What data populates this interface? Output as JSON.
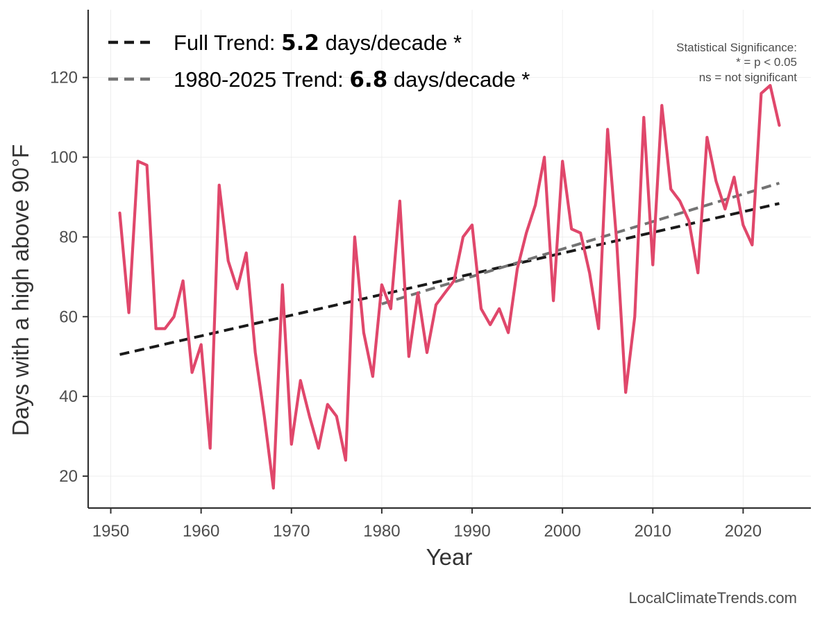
{
  "chart_data": {
    "type": "line",
    "title": "",
    "xlabel": "Year",
    "ylabel": "Days with a high above 90°F",
    "xlim": [
      1947.5,
      2027.5
    ],
    "ylim": [
      12,
      137
    ],
    "xticks": [
      1950,
      1960,
      1970,
      1980,
      1990,
      2000,
      2010,
      2020
    ],
    "yticks": [
      20,
      40,
      60,
      80,
      100,
      120
    ],
    "grid": true,
    "x": [
      1951,
      1952,
      1953,
      1954,
      1955,
      1956,
      1957,
      1958,
      1959,
      1960,
      1961,
      1962,
      1963,
      1964,
      1965,
      1966,
      1967,
      1968,
      1969,
      1970,
      1971,
      1972,
      1973,
      1974,
      1975,
      1976,
      1977,
      1978,
      1979,
      1980,
      1981,
      1982,
      1983,
      1984,
      1985,
      1986,
      1987,
      1988,
      1989,
      1990,
      1991,
      1992,
      1993,
      1994,
      1995,
      1996,
      1997,
      1998,
      1999,
      2000,
      2001,
      2002,
      2003,
      2004,
      2005,
      2006,
      2007,
      2008,
      2009,
      2010,
      2011,
      2012,
      2013,
      2014,
      2015,
      2016,
      2017,
      2018,
      2019,
      2020,
      2021,
      2022,
      2023,
      2024
    ],
    "series": [
      {
        "name": "Days with a high above 90°F",
        "color": "#e0476b",
        "values": [
          86,
          61,
          99,
          98,
          57,
          57,
          60,
          69,
          46,
          53,
          27,
          93,
          74,
          67,
          76,
          51,
          35,
          17,
          68,
          28,
          44,
          35,
          27,
          38,
          35,
          24,
          80,
          56,
          45,
          68,
          62,
          89,
          50,
          66,
          51,
          63,
          66,
          69,
          80,
          83,
          62,
          58,
          62,
          56,
          72,
          81,
          88,
          100,
          64,
          99,
          82,
          81,
          71,
          57,
          107,
          79,
          41,
          60,
          110,
          73,
          113,
          92,
          89,
          84,
          71,
          105,
          94,
          87,
          95,
          83,
          78,
          116,
          118,
          108
        ]
      }
    ],
    "trends": [
      {
        "name": "Full Trend",
        "label_prefix": "Full Trend: ",
        "rate": "5.2",
        "label_suffix": " days/decade *",
        "color": "#1a1a1a",
        "start": [
          1951,
          50.5
        ],
        "end": [
          2024,
          88.4
        ]
      },
      {
        "name": "1980-2025 Trend",
        "label_prefix": "1980-2025 Trend: ",
        "rate": "6.8",
        "label_suffix": " days/decade *",
        "color": "#737373",
        "start": [
          1980,
          63.2
        ],
        "end": [
          2024,
          93.5
        ]
      }
    ],
    "legend_position": "top-left",
    "significance_note": [
      "Statistical Significance:",
      "* = p < 0.05",
      "ns = not significant"
    ],
    "source": "LocalClimateTrends.com"
  }
}
